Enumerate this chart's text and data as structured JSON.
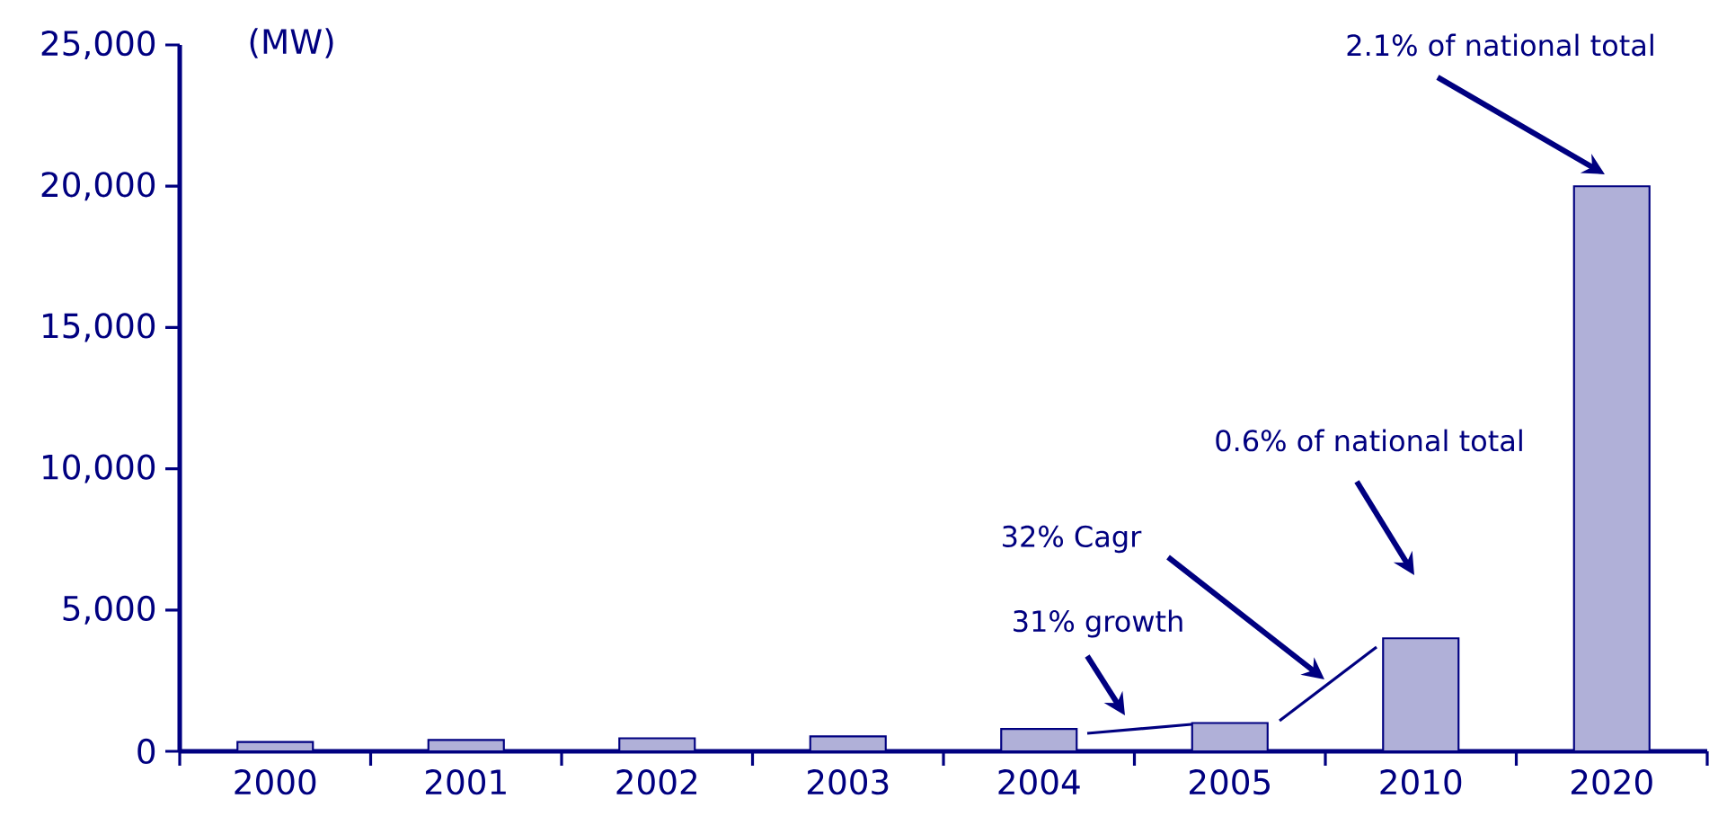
{
  "chart_data": {
    "type": "bar",
    "ylabel": "(MW)",
    "categories": [
      "2000",
      "2001",
      "2002",
      "2003",
      "2004",
      "2005",
      "2010",
      "2020"
    ],
    "values": [
      330,
      400,
      460,
      530,
      790,
      1000,
      4000,
      20000
    ],
    "color": "#b0b0d8",
    "ylim": [
      0,
      25000
    ],
    "yticks": [
      {
        "value": 0,
        "label": "0"
      },
      {
        "value": 5000,
        "label": "5,000"
      },
      {
        "value": 10000,
        "label": "10,000"
      },
      {
        "value": 15000,
        "label": "15,000"
      },
      {
        "value": 20000,
        "label": "20,000"
      },
      {
        "value": 25000,
        "label": "25,000"
      }
    ],
    "grid": false,
    "annotations": [
      "2.1% of national total",
      "0.6% of national total",
      "32% Cagr",
      "31% growth"
    ]
  }
}
